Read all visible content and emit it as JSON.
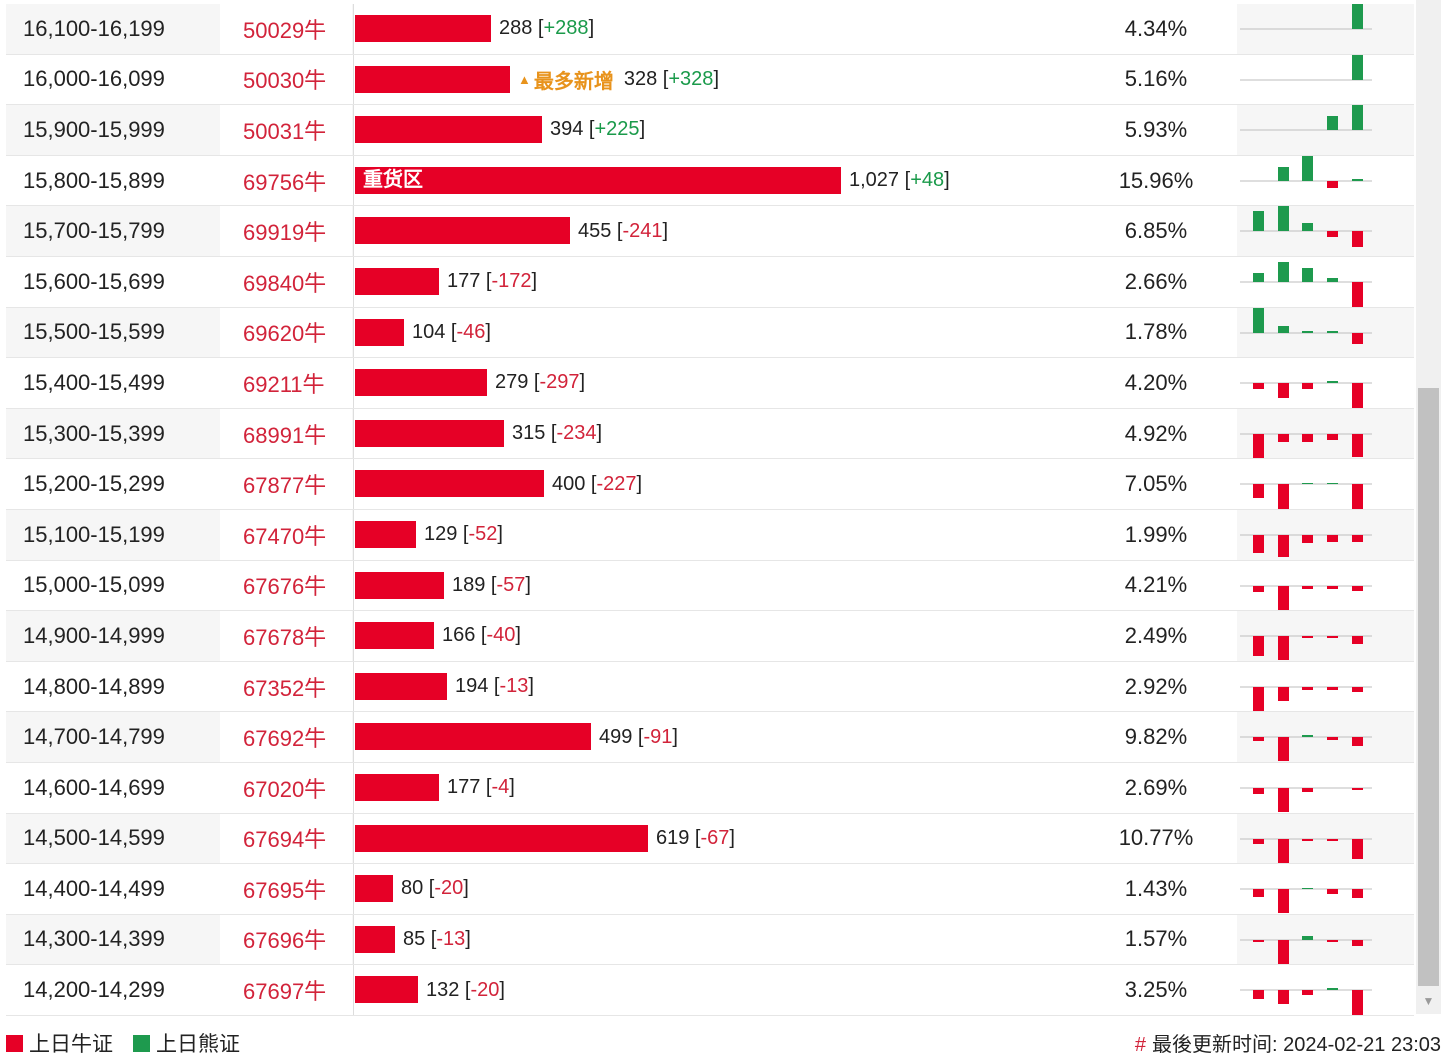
{
  "rows": [
    {
      "range": "16,100-16,199",
      "code": "50029牛",
      "count": "288",
      "change": "+288",
      "pct": "4.34%",
      "bar": 288,
      "spark": [
        0,
        0,
        0,
        0,
        33
      ]
    },
    {
      "range": "16,000-16,099",
      "code": "50030牛",
      "count": "328",
      "change": "+328",
      "pct": "5.16%",
      "bar": 328,
      "tag": "最多新增",
      "spark": [
        0,
        0,
        0,
        0,
        28
      ]
    },
    {
      "range": "15,900-15,999",
      "code": "50031牛",
      "count": "394",
      "change": "+225",
      "pct": "5.93%",
      "bar": 394,
      "spark": [
        0,
        0,
        0,
        14,
        30
      ]
    },
    {
      "range": "15,800-15,899",
      "code": "69756牛",
      "count": "1,027",
      "change": "+48",
      "pct": "15.96%",
      "bar": 1027,
      "inner": "重货区",
      "spark": [
        0,
        14,
        30,
        -7,
        2
      ]
    },
    {
      "range": "15,700-15,799",
      "code": "69919牛",
      "count": "455",
      "change": "-241",
      "pct": "6.85%",
      "bar": 455,
      "spark": [
        20,
        25,
        8,
        -6,
        -16
      ]
    },
    {
      "range": "15,600-15,699",
      "code": "69840牛",
      "count": "177",
      "change": "-172",
      "pct": "2.66%",
      "bar": 177,
      "spark": [
        9,
        20,
        14,
        4,
        -26
      ]
    },
    {
      "range": "15,500-15,599",
      "code": "69620牛",
      "count": "104",
      "change": "-46",
      "pct": "1.78%",
      "bar": 104,
      "spark": [
        25,
        7,
        2,
        2,
        -11
      ]
    },
    {
      "range": "15,400-15,499",
      "code": "69211牛",
      "count": "279",
      "change": "-297",
      "pct": "4.20%",
      "bar": 279,
      "spark": [
        -6,
        -15,
        -6,
        2,
        -26
      ]
    },
    {
      "range": "15,300-15,399",
      "code": "68991牛",
      "count": "315",
      "change": "-234",
      "pct": "4.92%",
      "bar": 315,
      "spark": [
        -26,
        -8,
        -8,
        -6,
        -23
      ]
    },
    {
      "range": "15,200-15,299",
      "code": "67877牛",
      "count": "400",
      "change": "-227",
      "pct": "7.05%",
      "bar": 400,
      "spark": [
        -14,
        -26,
        1,
        1,
        -26
      ]
    },
    {
      "range": "15,100-15,199",
      "code": "67470牛",
      "count": "129",
      "change": "-52",
      "pct": "1.99%",
      "bar": 129,
      "spark": [
        -18,
        -22,
        -8,
        -7,
        -7
      ]
    },
    {
      "range": "15,000-15,099",
      "code": "67676牛",
      "count": "189",
      "change": "-57",
      "pct": "4.21%",
      "bar": 189,
      "spark": [
        -6,
        -24,
        -3,
        -3,
        -5
      ]
    },
    {
      "range": "14,900-14,999",
      "code": "67678牛",
      "count": "166",
      "change": "-40",
      "pct": "2.49%",
      "bar": 166,
      "spark": [
        -20,
        -24,
        -2,
        -2,
        -8
      ]
    },
    {
      "range": "14,800-14,899",
      "code": "67352牛",
      "count": "194",
      "change": "-13",
      "pct": "2.92%",
      "bar": 194,
      "spark": [
        -24,
        -14,
        -3,
        -3,
        -5
      ]
    },
    {
      "range": "14,700-14,799",
      "code": "67692牛",
      "count": "499",
      "change": "-91",
      "pct": "9.82%",
      "bar": 499,
      "spark": [
        -4,
        -24,
        2,
        -3,
        -9
      ]
    },
    {
      "range": "14,600-14,699",
      "code": "67020牛",
      "count": "177",
      "change": "-4",
      "pct": "2.69%",
      "bar": 177,
      "spark": [
        -6,
        -24,
        -4,
        0,
        -2
      ]
    },
    {
      "range": "14,500-14,599",
      "code": "67694牛",
      "count": "619",
      "change": "-67",
      "pct": "10.77%",
      "bar": 619,
      "spark": [
        -5,
        -24,
        -2,
        -2,
        -20
      ]
    },
    {
      "range": "14,400-14,499",
      "code": "67695牛",
      "count": "80",
      "change": "-20",
      "pct": "1.43%",
      "bar": 80,
      "spark": [
        -8,
        -24,
        1,
        -5,
        -9
      ]
    },
    {
      "range": "14,300-14,399",
      "code": "67696牛",
      "count": "85",
      "change": "-13",
      "pct": "1.57%",
      "bar": 85,
      "spark": [
        -2,
        -24,
        4,
        -2,
        -6
      ]
    },
    {
      "range": "14,200-14,299",
      "code": "67697牛",
      "count": "132",
      "change": "-20",
      "pct": "3.25%",
      "bar": 132,
      "spark": [
        -9,
        -14,
        -5,
        2,
        -26
      ]
    }
  ],
  "legend": {
    "bull": "上日牛证",
    "bear": "上日熊证"
  },
  "update": {
    "hash": "#",
    "label": "最後更新时间: 2024-02-21 23:03"
  },
  "colors": {
    "red": "#e60026",
    "green": "#1e9a4e",
    "code": "#d2233a",
    "max": "#e8931c"
  }
}
